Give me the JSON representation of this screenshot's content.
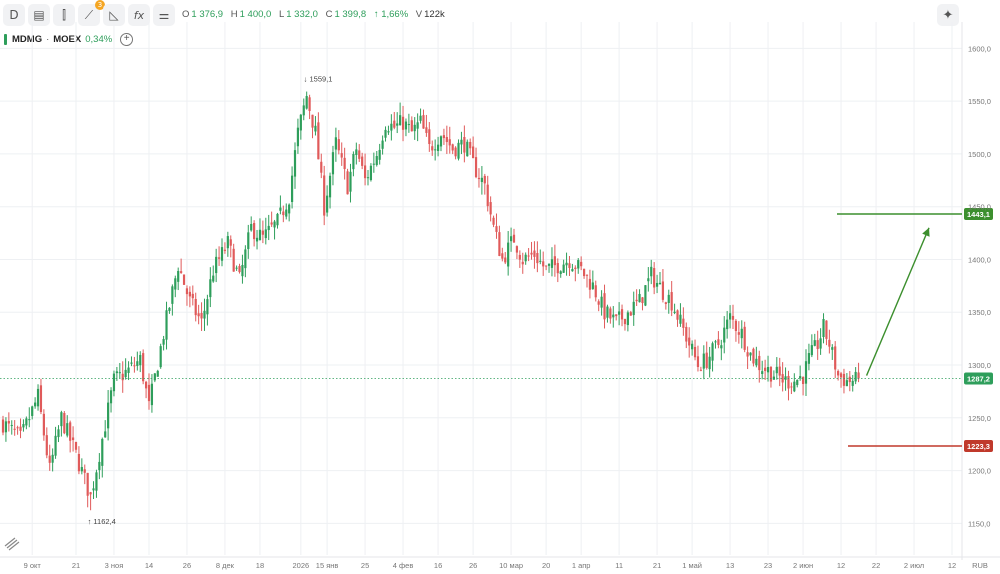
{
  "toolbar": {
    "interval_label": "D",
    "drawing_badge": "3",
    "fx_label": "fx",
    "ohlc": {
      "o_label": "O",
      "o_value": "1 376,9",
      "h_label": "H",
      "h_value": "1 400,0",
      "l_label": "L",
      "l_value": "1 332,0",
      "c_label": "C",
      "c_value": "1 399,8",
      "change": "↑ 1,66%",
      "v_label": "V",
      "v_value": "122k"
    }
  },
  "legend": {
    "symbol": "MDMG",
    "separator": "·",
    "exchange": "MOEX",
    "change": "0,34%"
  },
  "colors": {
    "up": "#2e9e5b",
    "down": "#e05a5a",
    "target_line": "#3c8f2e",
    "stop_line": "#c0392b",
    "current_price_label": "#2e9e5b",
    "grid": "#eef0f3"
  },
  "chart_data": {
    "type": "candlestick",
    "currency": "RUB",
    "y_axis_side": "right",
    "ylim": [
      1120,
      1625
    ],
    "y_ticks": [
      {
        "value": 1150,
        "label": "1150,0"
      },
      {
        "value": 1200,
        "label": "1200,0"
      },
      {
        "value": 1250,
        "label": "1250,0"
      },
      {
        "value": 1300,
        "label": "1300,0"
      },
      {
        "value": 1350,
        "label": "1350,0"
      },
      {
        "value": 1400,
        "label": "1400,0"
      },
      {
        "value": 1450,
        "label": "1450,0"
      },
      {
        "value": 1500,
        "label": "1500,0"
      },
      {
        "value": 1550,
        "label": "1550,0"
      },
      {
        "value": 1600,
        "label": "1600,0"
      }
    ],
    "x_ticks": [
      {
        "i": 10,
        "label": "9 окт"
      },
      {
        "i": 25,
        "label": "21"
      },
      {
        "i": 38,
        "label": "3 ноя"
      },
      {
        "i": 50,
        "label": "14"
      },
      {
        "i": 63,
        "label": "26"
      },
      {
        "i": 76,
        "label": "8 дек"
      },
      {
        "i": 88,
        "label": "18"
      },
      {
        "i": 102,
        "label": "2026"
      },
      {
        "i": 111,
        "label": "15 янв"
      },
      {
        "i": 124,
        "label": "25"
      },
      {
        "i": 137,
        "label": "4 фев"
      },
      {
        "i": 149,
        "label": "16"
      },
      {
        "i": 161,
        "label": "26"
      },
      {
        "i": 174,
        "label": "10 мар"
      },
      {
        "i": 186,
        "label": "20"
      },
      {
        "i": 198,
        "label": "1 апр"
      },
      {
        "i": 211,
        "label": "11"
      },
      {
        "i": 224,
        "label": "21"
      },
      {
        "i": 236,
        "label": "1 май"
      },
      {
        "i": 249,
        "label": "13"
      },
      {
        "i": 262,
        "label": "23"
      },
      {
        "i": 274,
        "label": "2 июн"
      },
      {
        "i": 287,
        "label": "12"
      },
      {
        "i": 299,
        "label": "22"
      },
      {
        "i": 312,
        "label": "2 июл"
      },
      {
        "i": 325,
        "label": "12"
      }
    ],
    "x_axis_currency_label": "RUB",
    "anchors": [
      [
        0,
        1245
      ],
      [
        6,
        1230
      ],
      [
        12,
        1270
      ],
      [
        16,
        1200
      ],
      [
        20,
        1250
      ],
      [
        25,
        1215
      ],
      [
        30,
        1175
      ],
      [
        34,
        1230
      ],
      [
        38,
        1285
      ],
      [
        43,
        1295
      ],
      [
        47,
        1305
      ],
      [
        50,
        1260
      ],
      [
        55,
        1330
      ],
      [
        60,
        1395
      ],
      [
        64,
        1360
      ],
      [
        68,
        1340
      ],
      [
        72,
        1390
      ],
      [
        77,
        1415
      ],
      [
        81,
        1380
      ],
      [
        85,
        1430
      ],
      [
        89,
        1420
      ],
      [
        94,
        1435
      ],
      [
        98,
        1460
      ],
      [
        101,
        1520
      ],
      [
        104,
        1555
      ],
      [
        107,
        1520
      ],
      [
        110,
        1450
      ],
      [
        114,
        1510
      ],
      [
        118,
        1470
      ],
      [
        121,
        1505
      ],
      [
        124,
        1475
      ],
      [
        128,
        1500
      ],
      [
        131,
        1530
      ],
      [
        134,
        1525
      ],
      [
        137,
        1530
      ],
      [
        140,
        1520
      ],
      [
        143,
        1530
      ],
      [
        146,
        1505
      ],
      [
        150,
        1520
      ],
      [
        154,
        1505
      ],
      [
        158,
        1510
      ],
      [
        161,
        1490
      ],
      [
        165,
        1470
      ],
      [
        168,
        1430
      ],
      [
        171,
        1400
      ],
      [
        175,
        1420
      ],
      [
        178,
        1400
      ],
      [
        182,
        1405
      ],
      [
        186,
        1390
      ],
      [
        190,
        1395
      ],
      [
        194,
        1400
      ],
      [
        198,
        1390
      ],
      [
        202,
        1375
      ],
      [
        206,
        1350
      ],
      [
        210,
        1340
      ],
      [
        214,
        1350
      ],
      [
        218,
        1360
      ],
      [
        222,
        1385
      ],
      [
        226,
        1370
      ],
      [
        229,
        1360
      ],
      [
        232,
        1340
      ],
      [
        235,
        1320
      ],
      [
        238,
        1300
      ],
      [
        241,
        1305
      ],
      [
        245,
        1320
      ],
      [
        249,
        1345
      ],
      [
        253,
        1330
      ],
      [
        256,
        1310
      ],
      [
        259,
        1300
      ],
      [
        262,
        1295
      ],
      [
        265,
        1290
      ],
      [
        268,
        1285
      ],
      [
        271,
        1285
      ],
      [
        274,
        1290
      ],
      [
        276,
        1305
      ],
      [
        279,
        1320
      ],
      [
        281,
        1335
      ],
      [
        283,
        1320
      ],
      [
        286,
        1290
      ],
      [
        289,
        1285
      ],
      [
        292,
        1285
      ],
      [
        293,
        1287
      ]
    ],
    "candle_count": 294,
    "last_price": 1287.2,
    "last_price_label": "1287,2",
    "annotations": [
      {
        "type": "high",
        "i": 104,
        "value": 1559.1,
        "label": "1559,1",
        "arrow": "↓"
      },
      {
        "type": "low",
        "i": 30,
        "value": 1162.4,
        "label": "1162,4",
        "arrow": "↑"
      }
    ],
    "target": {
      "value": 1443.1,
      "label": "1443,1"
    },
    "stop": {
      "value": 1223.3,
      "label": "1223,3"
    },
    "projection_arrow": {
      "from": {
        "i": 293,
        "value": 1290
      },
      "to": {
        "i": 300,
        "value": 1430
      }
    }
  }
}
